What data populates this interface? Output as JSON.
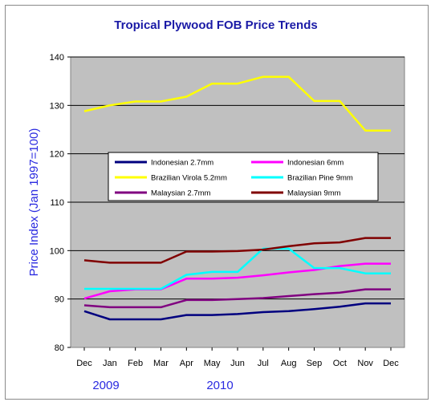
{
  "chart_data": {
    "type": "line",
    "title": "Tropical Plywood FOB Price Trends",
    "ylabel": "Price Index (Jan 1997=100)",
    "xlabel": "",
    "ylim": [
      80,
      140
    ],
    "yticks": [
      80,
      90,
      100,
      110,
      120,
      130,
      140
    ],
    "categories": [
      "Dec",
      "Jan",
      "Feb",
      "Mar",
      "Apr",
      "May",
      "Jun",
      "Jul",
      "Aug",
      "Sep",
      "Oct",
      "Nov",
      "Dec"
    ],
    "year_labels": [
      "2009",
      "2010"
    ],
    "grid": "horizontal",
    "legend_position": "center",
    "series": [
      {
        "name": "Indonesian 2.7mm",
        "color": "#00007f",
        "values": [
          87.5,
          85.8,
          85.8,
          85.8,
          86.7,
          86.7,
          86.9,
          87.3,
          87.5,
          87.9,
          88.4,
          89.1,
          89.1
        ]
      },
      {
        "name": "Indonesian 6mm",
        "color": "#ff00ff",
        "values": [
          90.1,
          91.6,
          92.0,
          92.0,
          94.2,
          94.2,
          94.4,
          94.9,
          95.5,
          96.0,
          96.8,
          97.3,
          97.3
        ]
      },
      {
        "name": "Brazilian Virola 5.2mm",
        "color": "#ffff00",
        "values": [
          128.8,
          130.0,
          130.8,
          130.8,
          131.8,
          134.5,
          134.5,
          135.9,
          135.9,
          130.9,
          130.9,
          124.8,
          124.8
        ]
      },
      {
        "name": "Brazilian Pine 9mm",
        "color": "#00ffff",
        "values": [
          92.1,
          92.1,
          92.1,
          92.1,
          95.0,
          95.6,
          95.6,
          100.4,
          100.4,
          96.4,
          96.4,
          95.3,
          95.3
        ]
      },
      {
        "name": "Malaysian 2.7mm",
        "color": "#800080",
        "values": [
          88.7,
          88.3,
          88.3,
          88.3,
          89.8,
          89.8,
          90.0,
          90.2,
          90.6,
          91.0,
          91.3,
          92.0,
          92.0
        ]
      },
      {
        "name": "Malaysian 9mm",
        "color": "#800000",
        "values": [
          98.0,
          97.5,
          97.5,
          97.5,
          99.8,
          99.8,
          99.9,
          100.2,
          100.9,
          101.5,
          101.7,
          102.6,
          102.6
        ]
      }
    ]
  }
}
